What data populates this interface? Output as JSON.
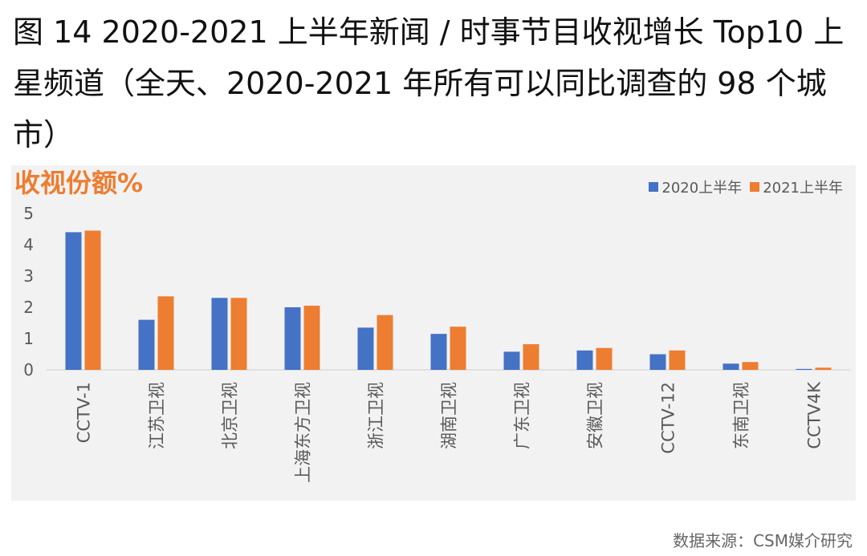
{
  "figure": {
    "title": "图 14 2020-2021 上半年新闻 / 时事节目收视增长 Top10 上星频道（全天、2020-2021 年所有可以同比调查的 98 个城市）",
    "source": "数据来源：CSM媒介研究"
  },
  "chart_data": {
    "type": "bar",
    "ylabel": "收视份额%",
    "ylim": [
      0,
      5
    ],
    "yticks": [
      0,
      1,
      2,
      3,
      4,
      5
    ],
    "grid": false,
    "legend_position": "top-right",
    "categories": [
      "CCTV-1",
      "江苏卫视",
      "北京卫视",
      "上海东方卫视",
      "浙江卫视",
      "湖南卫视",
      "广东卫视",
      "安徽卫视",
      "CCTV-12",
      "东南卫视",
      "CCTV4K"
    ],
    "series": [
      {
        "name": "2020上半年",
        "color": "#4472c4",
        "values": [
          4.4,
          1.6,
          2.3,
          2.0,
          1.35,
          1.15,
          0.58,
          0.62,
          0.5,
          0.2,
          0.03
        ]
      },
      {
        "name": "2021上半年",
        "color": "#ed7d31",
        "values": [
          4.45,
          2.35,
          2.3,
          2.05,
          1.75,
          1.38,
          0.82,
          0.7,
          0.62,
          0.25,
          0.07
        ]
      }
    ]
  }
}
